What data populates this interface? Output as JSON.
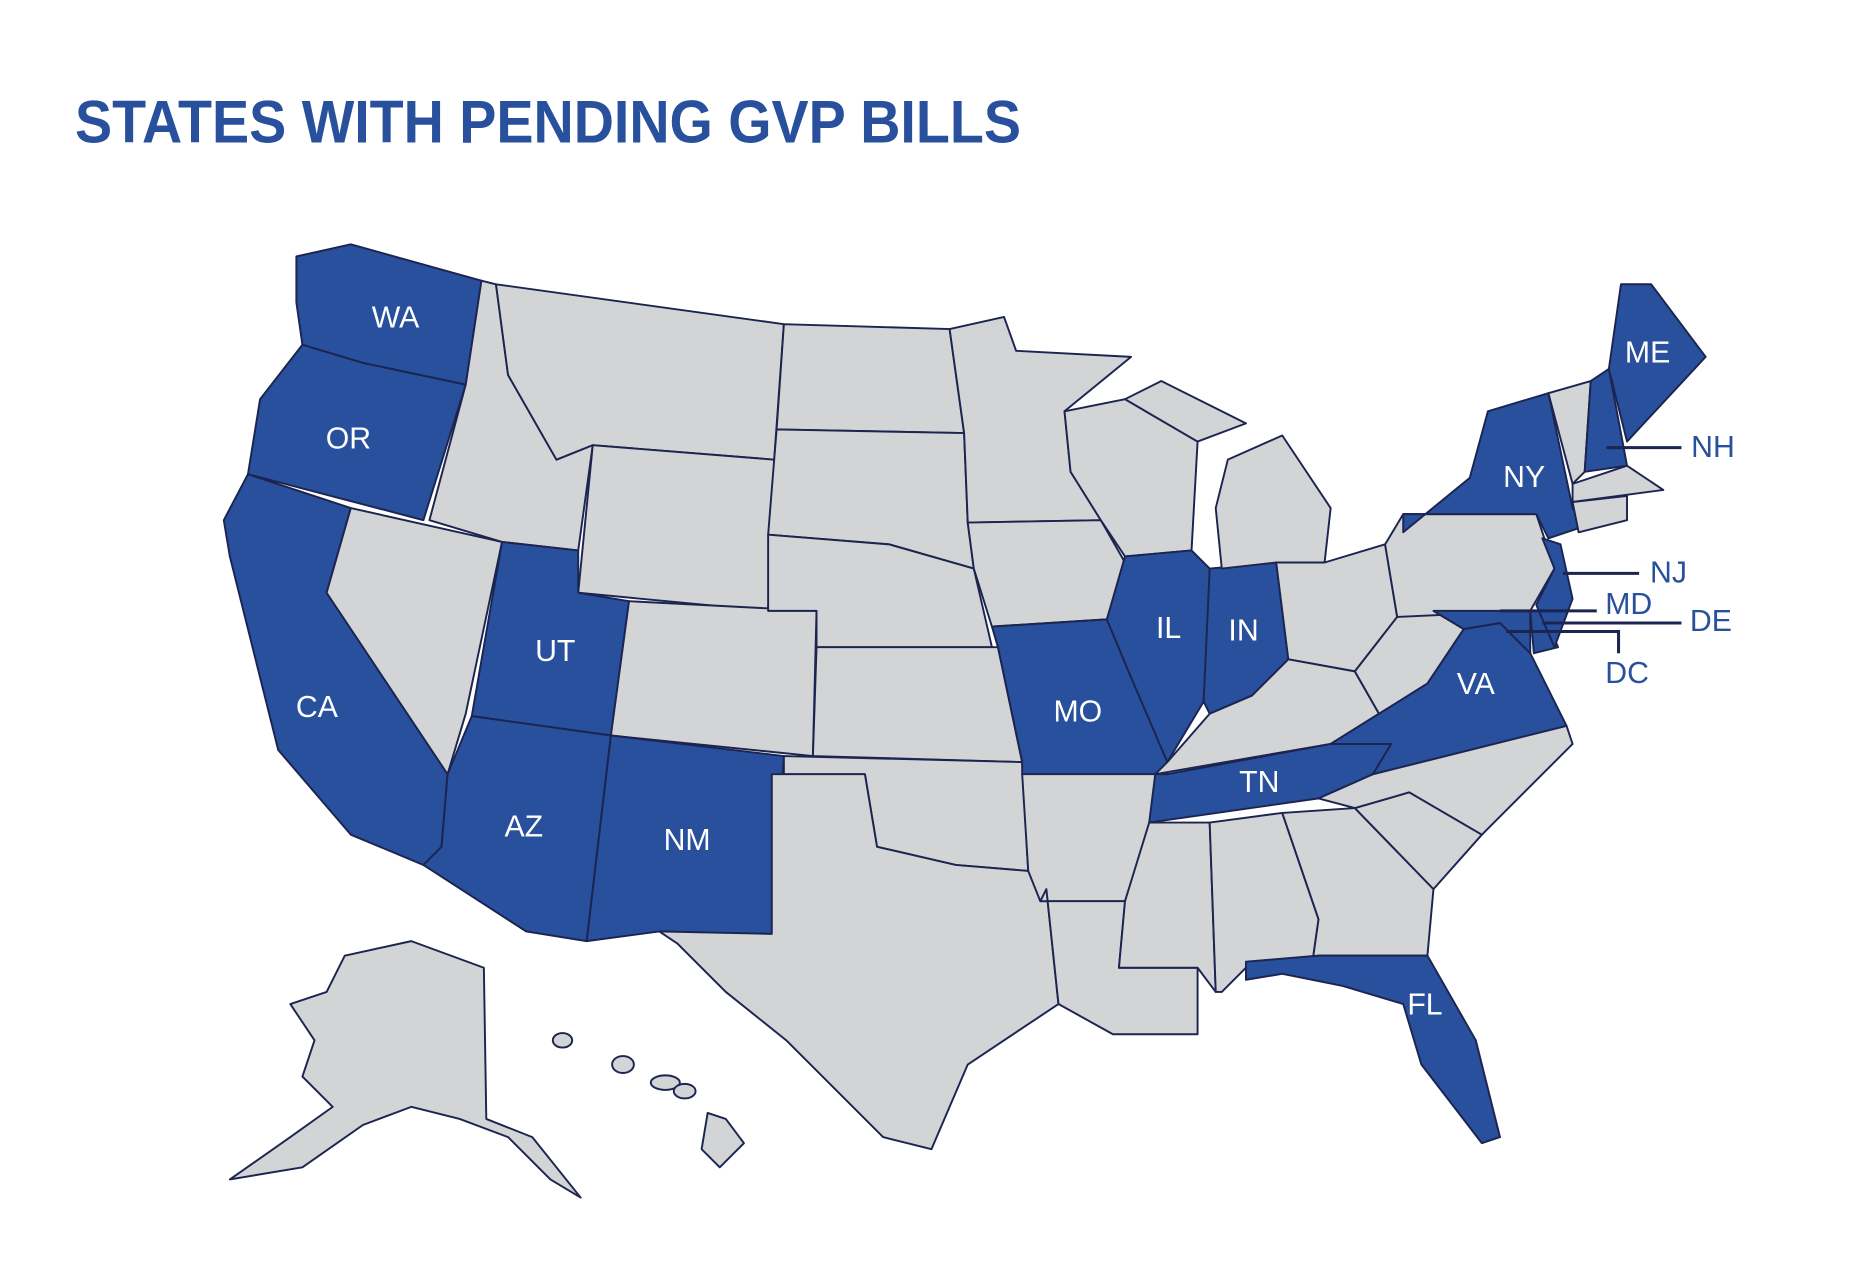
{
  "title": "STATES WITH PENDING GVP BILLS",
  "state_labels": [
    "WA",
    "OR",
    "CA",
    "UT",
    "AZ",
    "NM",
    "MO",
    "IL",
    "IN",
    "TN",
    "FL",
    "VA",
    "NY",
    "ME",
    "NH",
    "NJ",
    "MD",
    "DE",
    "DC"
  ]
}
